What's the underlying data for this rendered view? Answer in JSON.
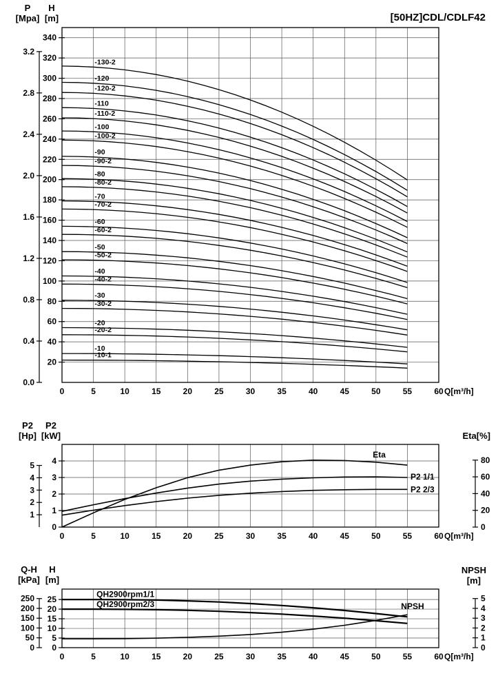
{
  "chart_data": [
    {
      "type": "line",
      "title": "[50HZ]CDL/CDLF42",
      "x_axis": {
        "min": 0,
        "max": 60,
        "step": 5,
        "unit": "Q[m³/h]"
      },
      "y_axis": {
        "name": "H",
        "unit": "[m]",
        "min": 0,
        "max": 350,
        "ticks": [
          "20",
          "40",
          "60",
          "80",
          "100",
          "120",
          "140",
          "160",
          "180",
          "200",
          "220",
          "240",
          "260",
          "280",
          "300",
          "320",
          "340"
        ]
      },
      "y_axis2": {
        "name": "P",
        "unit": "[Mpa]",
        "factor": 101.97,
        "ticks": [
          "0.0",
          "0.4",
          "0.8",
          "1.2",
          "1.6",
          "2.0",
          "2.4",
          "2.8",
          "3.2"
        ]
      },
      "curve_model": {
        "qmax": 55,
        "drop_fraction": 0.36,
        "exponent": 2,
        "label_q": 5.2
      },
      "series": [
        {
          "label": "-130-2",
          "shutoff_head_m": 312
        },
        {
          "label": "-120",
          "shutoff_head_m": 296
        },
        {
          "label": "-120-2",
          "shutoff_head_m": 286
        },
        {
          "label": "-110",
          "shutoff_head_m": 271
        },
        {
          "label": "-110-2",
          "shutoff_head_m": 261
        },
        {
          "label": "-100",
          "shutoff_head_m": 248
        },
        {
          "label": "-100-2",
          "shutoff_head_m": 239
        },
        {
          "label": "-90",
          "shutoff_head_m": 223
        },
        {
          "label": "-90-2",
          "shutoff_head_m": 214
        },
        {
          "label": "-80",
          "shutoff_head_m": 201
        },
        {
          "label": "-80-2",
          "shutoff_head_m": 193
        },
        {
          "label": "-70",
          "shutoff_head_m": 179
        },
        {
          "label": "-70-2",
          "shutoff_head_m": 171
        },
        {
          "label": "-60",
          "shutoff_head_m": 154
        },
        {
          "label": "-60-2",
          "shutoff_head_m": 146
        },
        {
          "label": "-50",
          "shutoff_head_m": 129
        },
        {
          "label": "-50-2",
          "shutoff_head_m": 121
        },
        {
          "label": "-40",
          "shutoff_head_m": 105
        },
        {
          "label": "-40-2",
          "shutoff_head_m": 97
        },
        {
          "label": "-30",
          "shutoff_head_m": 81
        },
        {
          "label": "-30-2",
          "shutoff_head_m": 73
        },
        {
          "label": "-20",
          "shutoff_head_m": 54
        },
        {
          "label": "-20-2",
          "shutoff_head_m": 47
        },
        {
          "label": "-10",
          "shutoff_head_m": 28.5
        },
        {
          "label": "-10-1",
          "shutoff_head_m": 22
        }
      ]
    },
    {
      "type": "line",
      "x_axis": {
        "min": 0,
        "max": 60,
        "step": 5,
        "unit": "Q[m³/h]"
      },
      "y_axis": {
        "name": "P2",
        "unit": "[kW]",
        "min": 0,
        "max": 5,
        "ticks": [
          "0",
          "1",
          "2",
          "3",
          "4"
        ]
      },
      "y_axis2": {
        "name": "P2",
        "unit": "[Hp]",
        "factor": 0.7457,
        "ticks": [
          "1",
          "2",
          "3",
          "4",
          "5"
        ]
      },
      "right_axis": {
        "label": "Eta[%]",
        "factor": 0.050625,
        "ticks": [
          "0",
          "20",
          "40",
          "60",
          "80"
        ]
      },
      "x": [
        0,
        5,
        10,
        15,
        20,
        25,
        30,
        35,
        40,
        45,
        50,
        55
      ],
      "series": [
        {
          "name": "Eta",
          "axis": "right",
          "width": 1.6,
          "y": [
            0,
            17,
            33,
            47,
            59,
            68,
            74,
            78,
            80,
            79.5,
            77.5,
            74
          ]
        },
        {
          "name": "P2 1/1",
          "width": 1.6,
          "y": [
            0.95,
            1.35,
            1.72,
            2.06,
            2.36,
            2.6,
            2.78,
            2.9,
            2.98,
            3.03,
            3.04,
            3.0
          ]
        },
        {
          "name": "P2 2/3",
          "width": 1.6,
          "y": [
            0.72,
            1.02,
            1.3,
            1.54,
            1.75,
            1.92,
            2.05,
            2.15,
            2.22,
            2.26,
            2.28,
            2.28
          ]
        }
      ],
      "annotations": [
        {
          "text": "Eta",
          "q": 49.5,
          "v": 4.38
        },
        {
          "text": "P2 1/1",
          "q": 55.5,
          "v": 3.05
        },
        {
          "text": "P2 2/3",
          "q": 55.5,
          "v": 2.28
        }
      ]
    },
    {
      "type": "line",
      "x_axis": {
        "min": 0,
        "max": 60,
        "step": 5,
        "unit": "Q[m³/h]"
      },
      "y_axis": {
        "name": "H",
        "unit": "[m]",
        "min": 0,
        "max": 30.4,
        "ticks": [
          "0",
          "5",
          "10",
          "15",
          "20",
          "25"
        ]
      },
      "y_axis2": {
        "name": "Q-H",
        "unit": "[kPa]",
        "factor": 0.10197,
        "ticks": [
          "0",
          "50",
          "100",
          "150",
          "200",
          "250"
        ]
      },
      "right_axis": {
        "label": "NPSH",
        "unit": "[m]",
        "factor": 5.1,
        "ticks": [
          "0",
          "1",
          "2",
          "3",
          "4",
          "5"
        ]
      },
      "x": [
        0,
        5,
        10,
        15,
        20,
        25,
        30,
        35,
        40,
        45,
        50,
        55
      ],
      "series": [
        {
          "name": "QH2900rpm1/1",
          "width": 2.2,
          "y": [
            25,
            25,
            24.9,
            24.7,
            24.3,
            23.7,
            22.9,
            21.9,
            20.7,
            19.3,
            17.7,
            16
          ]
        },
        {
          "name": "QH2900rpm2/3",
          "width": 2.2,
          "y": [
            20,
            20,
            19.9,
            19.7,
            19.4,
            18.9,
            18.2,
            17.4,
            16.4,
            15.3,
            14,
            12.6
          ]
        },
        {
          "name": "NPSH",
          "axis": "right",
          "width": 1.6,
          "y": [
            0.9,
            0.9,
            0.92,
            0.97,
            1.05,
            1.17,
            1.34,
            1.57,
            1.88,
            2.28,
            2.78,
            3.35
          ]
        }
      ],
      "annotations": [
        {
          "text": "QH2900rpm1/1",
          "q": 5.5,
          "v": 27.8
        },
        {
          "text": "QH2900rpm2/3",
          "q": 5.5,
          "v": 22.5
        },
        {
          "text": "NPSH",
          "q": 54,
          "v": 21.4
        }
      ]
    }
  ]
}
